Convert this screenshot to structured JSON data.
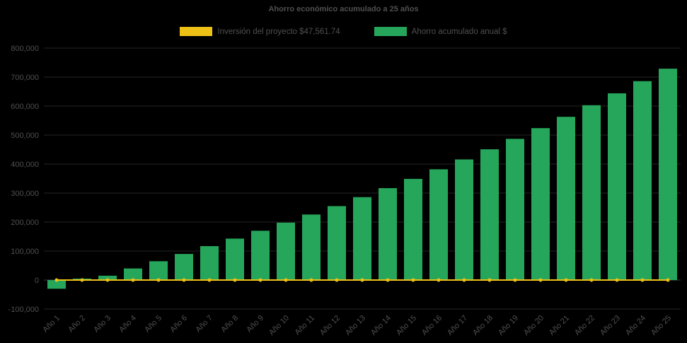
{
  "chart": {
    "title": "Ahorro económico acumulado a 25 años",
    "legend": {
      "investment": {
        "label": "Inversión del proyecto $47,561.74"
      },
      "savings": {
        "label": "Ahorro acumulado anual $"
      }
    }
  },
  "chart_data": {
    "type": "bar",
    "title": "Ahorro económico acumulado a 25 años",
    "categories": [
      "Año 1",
      "Año 2",
      "Año 3",
      "Año 4",
      "Año 5",
      "Año 6",
      "Año 7",
      "Año 8",
      "Año 9",
      "Año 10",
      "Año 11",
      "Año 12",
      "Año 13",
      "Año 14",
      "Año 15",
      "Año 16",
      "Año 17",
      "Año 18",
      "Año 19",
      "Año 20",
      "Año 21",
      "Año 22",
      "Año 23",
      "Año 24",
      "Año 25"
    ],
    "series": [
      {
        "name": "Inversión del proyecto $47,561.74",
        "type": "line",
        "color": "#eec117",
        "values": [
          0,
          0,
          0,
          0,
          0,
          0,
          0,
          0,
          0,
          0,
          0,
          0,
          0,
          0,
          0,
          0,
          0,
          0,
          0,
          0,
          0,
          0,
          0,
          0,
          0
        ]
      },
      {
        "name": "Ahorro acumulado anual $",
        "type": "bar",
        "color": "#26a65b",
        "values": [
          -30000,
          5000,
          15000,
          40000,
          65000,
          90000,
          117000,
          143000,
          170000,
          198000,
          226000,
          255000,
          286000,
          317000,
          349000,
          382000,
          416000,
          451000,
          487000,
          524000,
          563000,
          603000,
          644000,
          686000,
          729000
        ]
      }
    ],
    "ylim": [
      -100000,
      800000
    ],
    "ytick_interval": 100000,
    "y_tick_labels": [
      "-100,000",
      "0",
      "100,000",
      "200,000",
      "300,000",
      "400,000",
      "500,000",
      "600,000",
      "700,000",
      "800,000"
    ],
    "grid": true,
    "legend_position": "top",
    "colors": {
      "background": "#000000",
      "text": "#4f4f4f",
      "grid": "#232323",
      "axis": "#3c3c3c"
    }
  }
}
